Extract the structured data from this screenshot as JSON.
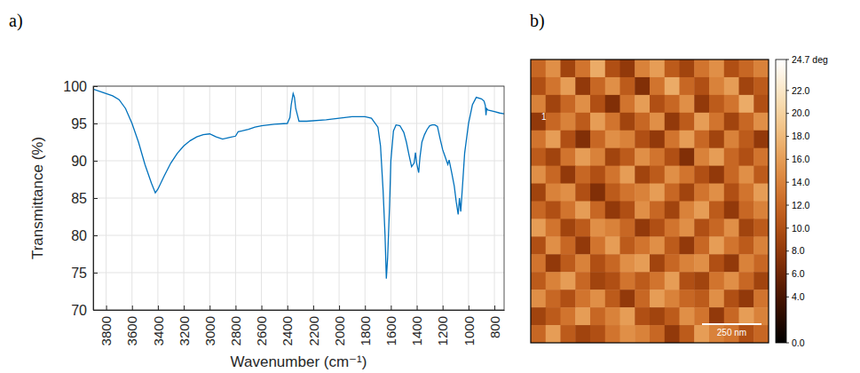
{
  "chart_data": [
    {
      "type": "line",
      "panel_label": "a)",
      "x_label": "Wavenumber (cm⁻¹)",
      "y_label": "Transmittance (%)",
      "color": "#0072bd",
      "grid": true,
      "xlim": [
        3900,
        725
      ],
      "ylim": [
        70,
        100
      ],
      "xticks": [
        3800,
        3600,
        3400,
        3200,
        3000,
        2800,
        2600,
        2400,
        2200,
        2000,
        1800,
        1600,
        1400,
        1200,
        1000,
        800
      ],
      "yticks": [
        70,
        75,
        80,
        85,
        90,
        95,
        100
      ],
      "x": [
        3900,
        3850,
        3800,
        3750,
        3700,
        3650,
        3600,
        3550,
        3500,
        3450,
        3420,
        3400,
        3350,
        3300,
        3250,
        3200,
        3150,
        3100,
        3050,
        3000,
        2950,
        2900,
        2850,
        2800,
        2780,
        2750,
        2700,
        2650,
        2600,
        2500,
        2400,
        2380,
        2370,
        2355,
        2345,
        2335,
        2320,
        2310,
        2250,
        2100,
        2000,
        1900,
        1800,
        1750,
        1700,
        1680,
        1660,
        1645,
        1635,
        1625,
        1610,
        1600,
        1580,
        1560,
        1530,
        1500,
        1480,
        1460,
        1440,
        1420,
        1410,
        1400,
        1385,
        1375,
        1360,
        1340,
        1320,
        1300,
        1280,
        1260,
        1240,
        1220,
        1200,
        1180,
        1160,
        1150,
        1130,
        1110,
        1095,
        1080,
        1070,
        1060,
        1045,
        1030,
        1000,
        970,
        940,
        900,
        880,
        870,
        865,
        860,
        850,
        800,
        760,
        725
      ],
      "values": [
        99.6,
        99.3,
        99.0,
        98.7,
        98.2,
        97.0,
        95.0,
        92.5,
        89.5,
        87.0,
        85.7,
        86.2,
        88.0,
        89.7,
        91.0,
        92.0,
        92.7,
        93.2,
        93.5,
        93.6,
        93.2,
        92.9,
        93.1,
        93.3,
        93.9,
        94.0,
        94.2,
        94.5,
        94.7,
        94.9,
        95.0,
        95.8,
        97.5,
        99.0,
        98.5,
        97.0,
        96.0,
        95.3,
        95.3,
        95.5,
        95.7,
        95.9,
        95.9,
        95.7,
        94.5,
        92.0,
        86.0,
        80.0,
        74.2,
        77.0,
        84.0,
        90.0,
        94.0,
        94.8,
        94.7,
        93.8,
        92.5,
        90.8,
        89.2,
        89.7,
        91.1,
        89.6,
        88.4,
        90.5,
        92.5,
        93.5,
        94.2,
        94.7,
        94.8,
        94.8,
        94.6,
        93.0,
        91.5,
        90.5,
        89.5,
        90.1,
        88.4,
        86.6,
        84.5,
        82.8,
        85.0,
        83.2,
        87.0,
        91.0,
        95.0,
        97.5,
        98.5,
        98.3,
        98.0,
        97.4,
        96.1,
        97.0,
        96.8,
        96.6,
        96.4,
        96.3
      ]
    },
    {
      "type": "heatmap",
      "panel_label": "b)",
      "tick_labels": false,
      "xlim": [
        0,
        1000
      ],
      "ylim": [
        0,
        1000
      ],
      "annotations": [
        "1"
      ],
      "scale_bar": {
        "value": 250,
        "label": "250 nm"
      },
      "color_range": [
        0,
        24.7
      ],
      "color_ticks": [
        {
          "value": 0,
          "label": "0.0"
        },
        {
          "value": 4,
          "label": "4.0"
        },
        {
          "value": 6,
          "label": "6.0"
        },
        {
          "value": 8,
          "label": "8.0"
        },
        {
          "value": 10,
          "label": "10.0"
        },
        {
          "value": 12,
          "label": "12.0"
        },
        {
          "value": 14,
          "label": "14.0"
        },
        {
          "value": 16,
          "label": "16.0"
        },
        {
          "value": 18,
          "label": "18.0"
        },
        {
          "value": 20,
          "label": "20.0"
        },
        {
          "value": 22,
          "label": "22.0"
        },
        {
          "value": 24.7,
          "label": "24.7 deg"
        }
      ],
      "cells": [
        [
          12,
          15,
          9,
          13,
          17,
          10,
          8,
          14,
          16,
          11,
          9,
          13,
          15,
          10,
          12,
          14
        ],
        [
          10,
          13,
          16,
          8,
          12,
          15,
          11,
          7,
          13,
          17,
          12,
          10,
          14,
          16,
          9,
          11
        ],
        [
          14,
          9,
          12,
          15,
          10,
          7,
          13,
          16,
          10,
          12,
          15,
          8,
          11,
          13,
          17,
          10
        ],
        [
          8,
          12,
          14,
          11,
          16,
          13,
          9,
          12,
          15,
          8,
          11,
          16,
          13,
          9,
          12,
          15
        ],
        [
          13,
          16,
          10,
          7,
          12,
          15,
          14,
          10,
          8,
          13,
          16,
          12,
          9,
          14,
          11,
          8
        ],
        [
          11,
          9,
          13,
          16,
          14,
          9,
          11,
          15,
          13,
          10,
          7,
          14,
          16,
          12,
          10,
          13
        ],
        [
          15,
          12,
          8,
          12,
          10,
          13,
          16,
          9,
          11,
          15,
          13,
          10,
          8,
          12,
          15,
          11
        ],
        [
          9,
          14,
          15,
          10,
          7,
          11,
          13,
          14,
          16,
          12,
          9,
          13,
          15,
          10,
          13,
          16
        ],
        [
          12,
          10,
          13,
          16,
          12,
          8,
          10,
          15,
          12,
          9,
          14,
          16,
          11,
          8,
          12,
          14
        ],
        [
          16,
          13,
          9,
          11,
          15,
          14,
          12,
          8,
          10,
          13,
          15,
          10,
          12,
          15,
          9,
          11
        ],
        [
          10,
          15,
          12,
          8,
          13,
          16,
          11,
          13,
          15,
          11,
          8,
          12,
          16,
          13,
          11,
          14
        ],
        [
          13,
          8,
          11,
          14,
          10,
          12,
          15,
          16,
          9,
          12,
          14,
          15,
          10,
          8,
          14,
          12
        ],
        [
          11,
          14,
          16,
          12,
          9,
          10,
          13,
          11,
          13,
          16,
          10,
          9,
          13,
          15,
          12,
          9
        ],
        [
          15,
          12,
          10,
          13,
          15,
          11,
          8,
          12,
          16,
          14,
          12,
          11,
          15,
          10,
          8,
          13
        ],
        [
          9,
          11,
          13,
          16,
          12,
          14,
          16,
          10,
          9,
          11,
          15,
          13,
          8,
          12,
          16,
          14
        ],
        [
          12,
          16,
          11,
          9,
          10,
          13,
          15,
          14,
          12,
          8,
          11,
          16,
          14,
          13,
          10,
          12
        ]
      ]
    }
  ]
}
